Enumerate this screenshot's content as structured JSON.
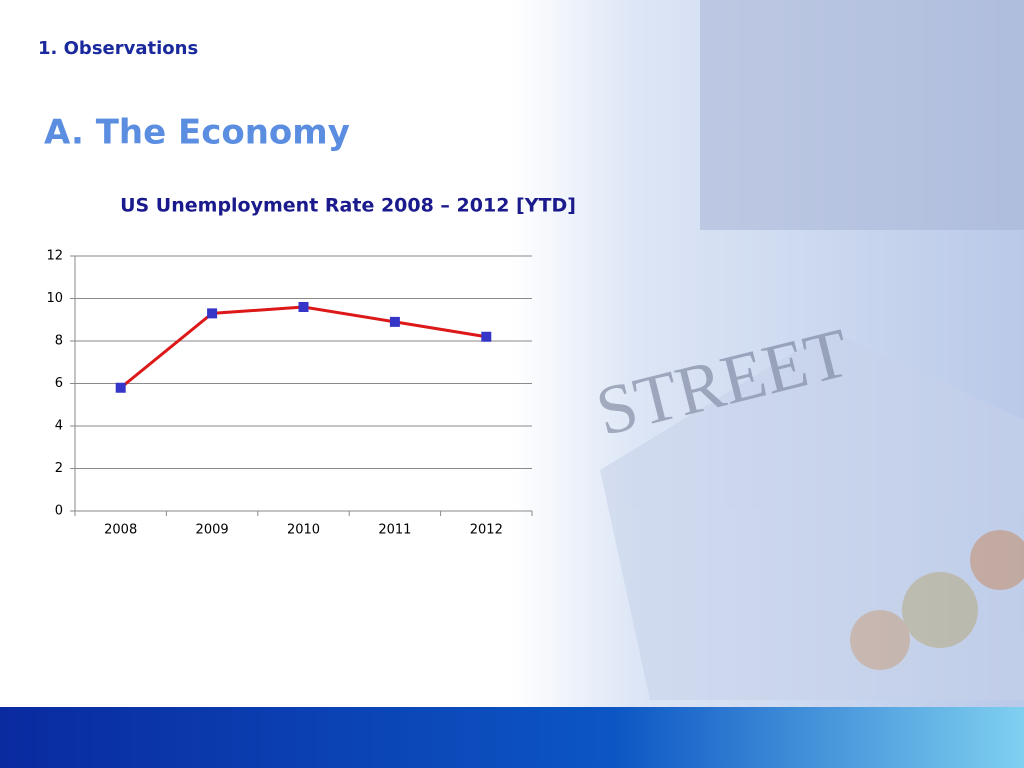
{
  "section": "1. Observations",
  "heading": "A. The Economy",
  "chart_data": {
    "type": "line",
    "title": "US Unemployment Rate 2008 – 2012 [YTD]",
    "categories": [
      "2008",
      "2009",
      "2010",
      "2011",
      "2012"
    ],
    "series": [
      {
        "name": "Unemployment Rate",
        "color": "#dd1818",
        "marker_color": "#3535c8",
        "values": [
          5.8,
          9.3,
          9.6,
          8.9,
          8.2
        ]
      }
    ],
    "ylim": [
      0,
      12
    ],
    "yticks": [
      0,
      2,
      4,
      6,
      8,
      10,
      12
    ],
    "grid": true,
    "legend": false
  }
}
